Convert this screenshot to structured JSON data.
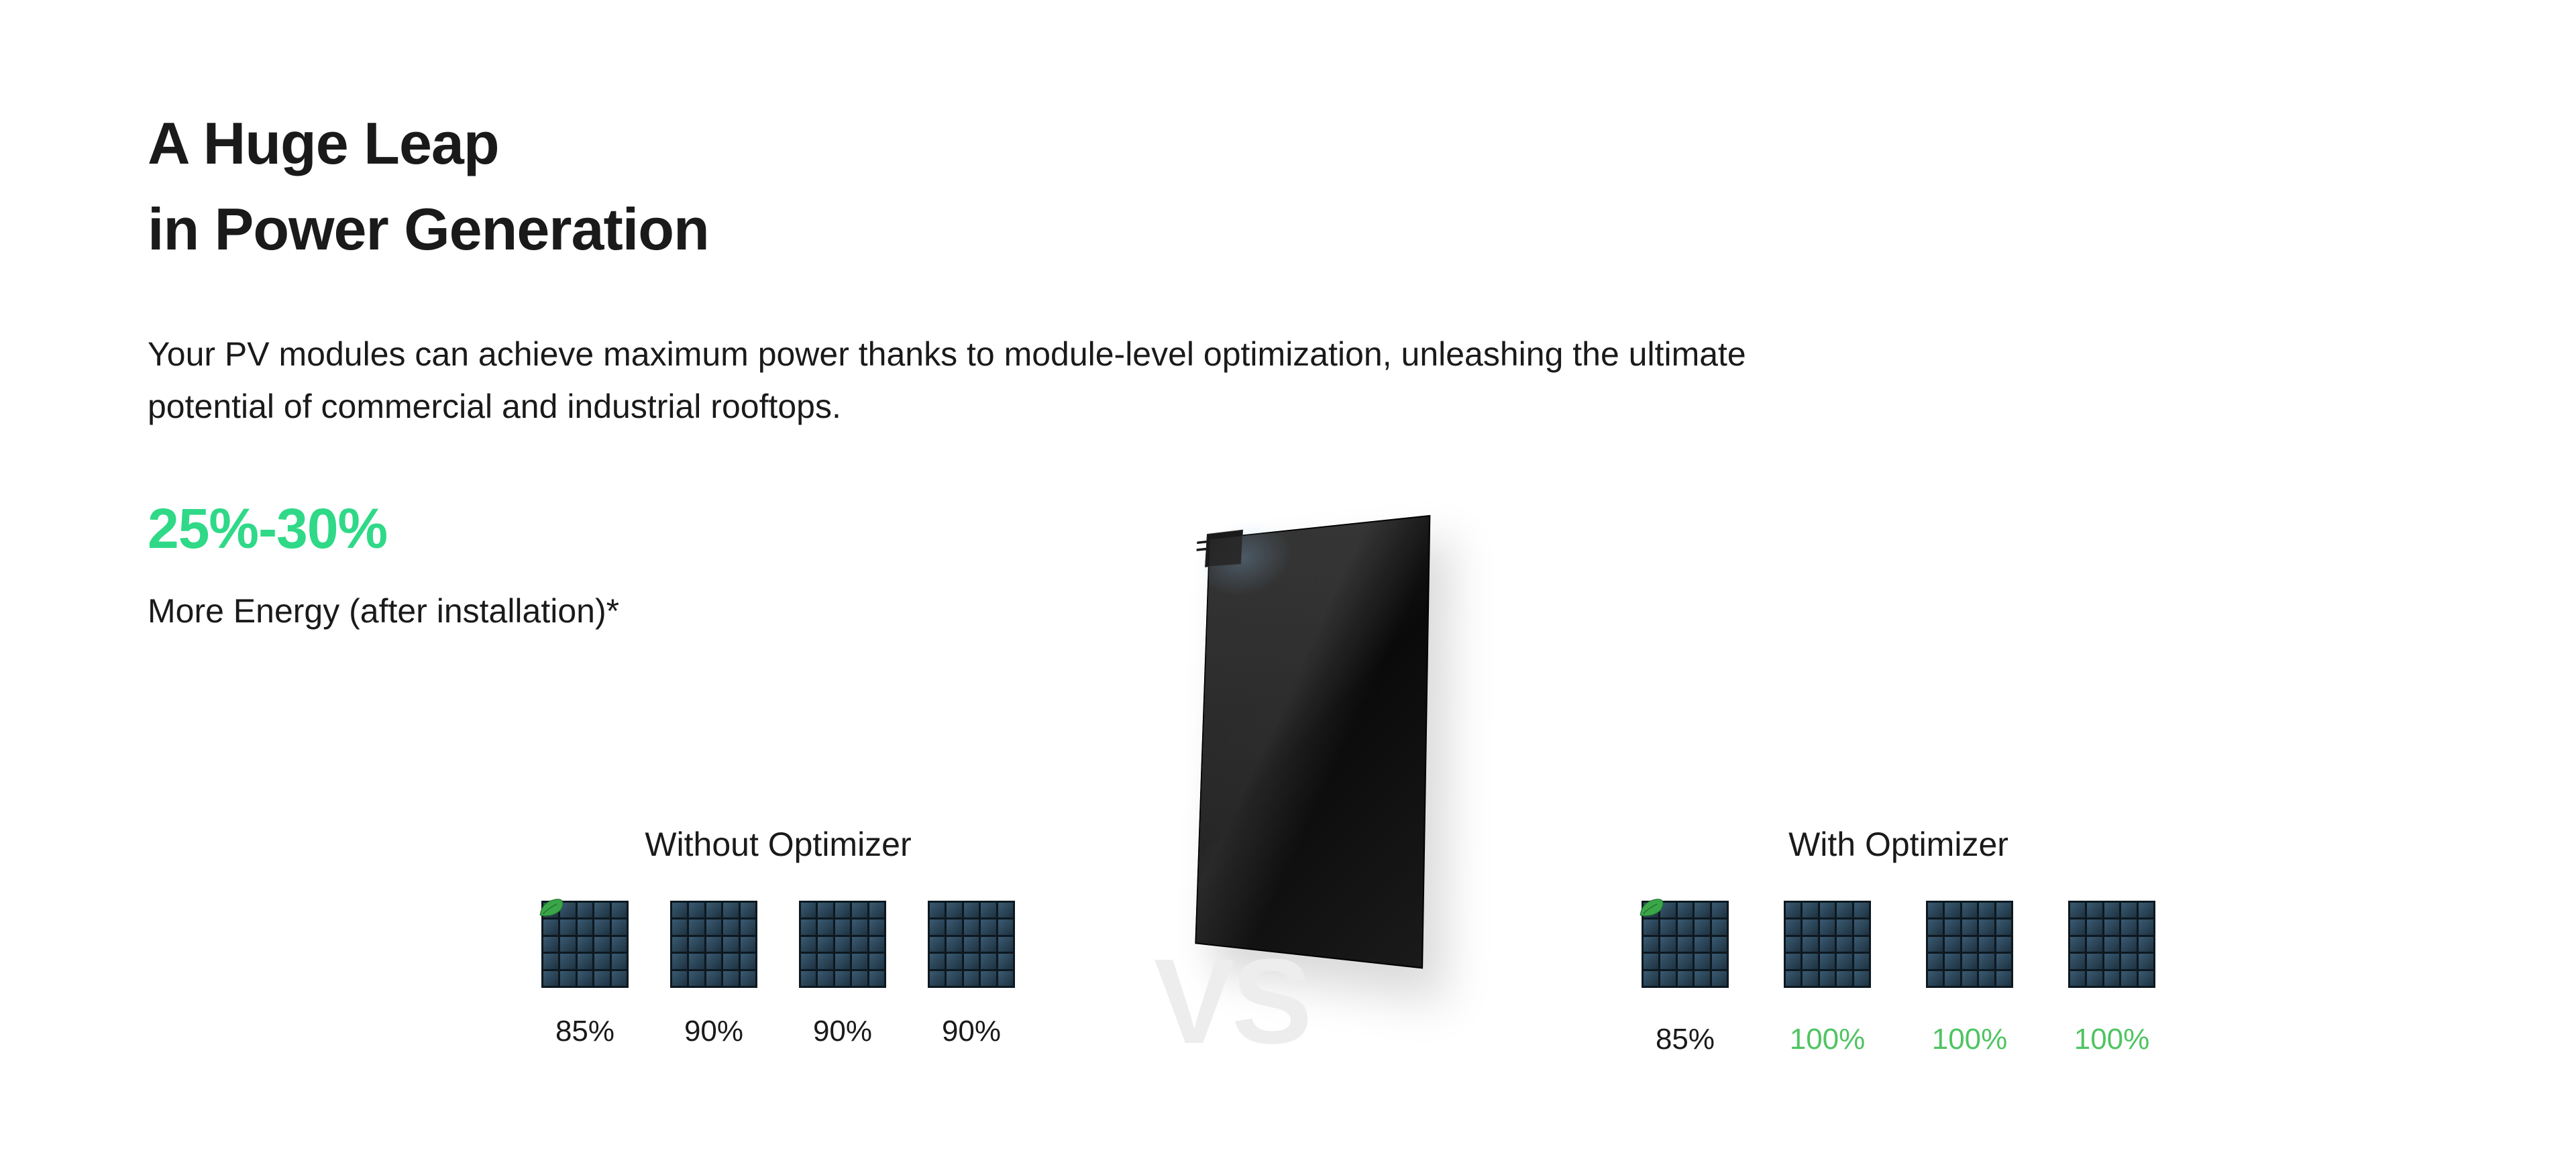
{
  "colors": {
    "accent_green": "#2fd987",
    "text_primary": "#1a1a1a",
    "pct_green": "#4fc462",
    "panel_cell_light": "#3a5a72",
    "panel_cell_dark": "#1e3240",
    "panel_bg": "#0d1820",
    "vs_gray": "#ededed",
    "background": "#ffffff",
    "leaf_fill": "#3aa648",
    "leaf_stroke": "#1d6b2a"
  },
  "heading": {
    "line1": "A Huge Leap",
    "line2": "in Power Generation"
  },
  "subheading": "Your PV modules can achieve maximum power thanks to module-level optimization, unleashing the ultimate potential of commercial and industrial rooftops.",
  "stat": {
    "value": "25%-30%",
    "label": "More Energy (after installation)*"
  },
  "vs_label": "VS",
  "comparison": {
    "without": {
      "title": "Without Optimizer",
      "panels": [
        {
          "pct": "85%",
          "pct_color": "#1a1a1a",
          "has_leaf": true
        },
        {
          "pct": "90%",
          "pct_color": "#1a1a1a",
          "has_leaf": false
        },
        {
          "pct": "90%",
          "pct_color": "#1a1a1a",
          "has_leaf": false
        },
        {
          "pct": "90%",
          "pct_color": "#1a1a1a",
          "has_leaf": false
        }
      ]
    },
    "with": {
      "title": "With Optimizer",
      "panels": [
        {
          "pct": "85%",
          "pct_color": "#1a1a1a",
          "has_leaf": true
        },
        {
          "pct": "100%",
          "pct_color": "#4fc462",
          "has_leaf": false
        },
        {
          "pct": "100%",
          "pct_color": "#4fc462",
          "has_leaf": false
        },
        {
          "pct": "100%",
          "pct_color": "#4fc462",
          "has_leaf": false
        }
      ]
    }
  },
  "mini_panel_grid": {
    "cols": 5,
    "rows": 5
  }
}
